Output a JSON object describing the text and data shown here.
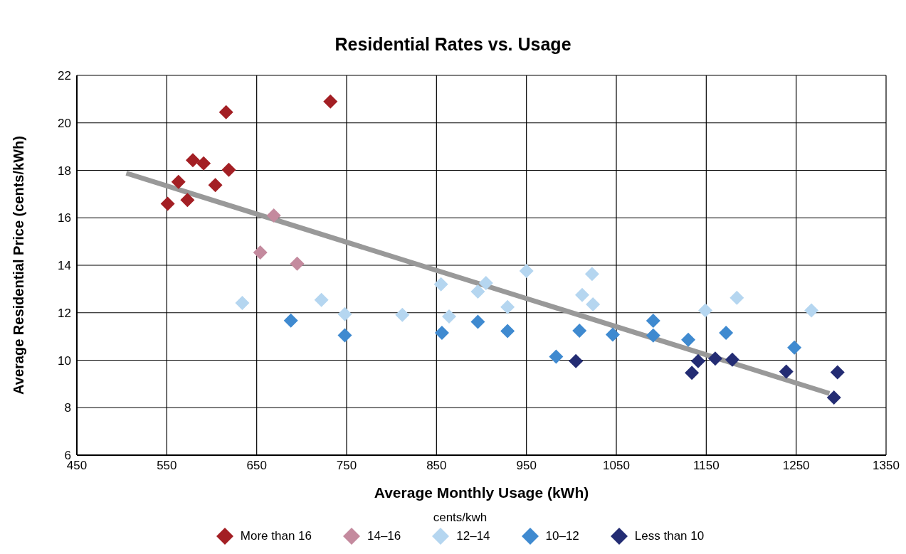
{
  "chart_data": {
    "type": "scatter",
    "title": "Residential Rates vs. Usage",
    "xlabel": "Average Monthly Usage (kWh)",
    "ylabel": "Average Residential Price (cents/kWh)",
    "legend_title": "cents/kwh",
    "legend": "bottom",
    "grid": true,
    "marker": "diamond",
    "xlim": [
      450,
      1350
    ],
    "xticks": [
      450,
      550,
      650,
      750,
      850,
      950,
      1050,
      1150,
      1250,
      1350
    ],
    "ylim": [
      6,
      22
    ],
    "yticks": [
      6,
      8,
      10,
      12,
      14,
      16,
      18,
      20,
      22
    ],
    "series": [
      {
        "name": "More than 16",
        "color": "#a31f24",
        "x": [
          616,
          732,
          579,
          591,
          619,
          563,
          604,
          551,
          573
        ],
        "values": [
          20.45,
          20.9,
          18.43,
          18.29,
          18.02,
          17.51,
          17.38,
          16.59,
          16.75
        ]
      },
      {
        "name": "14–16",
        "color": "#c48a9e",
        "x": [
          669,
          654,
          695
        ],
        "values": [
          16.1,
          14.54,
          14.07
        ]
      },
      {
        "name": "12–14",
        "color": "#b5d6f0",
        "x": [
          634,
          722,
          748,
          812,
          855,
          864,
          896,
          905,
          929,
          950,
          1023,
          1012,
          1024,
          1149,
          1184,
          1267
        ],
        "values": [
          12.41,
          12.54,
          11.94,
          11.91,
          13.2,
          11.84,
          12.89,
          13.25,
          12.24,
          13.76,
          13.63,
          12.75,
          12.35,
          12.1,
          12.63,
          12.1
        ]
      },
      {
        "name": "10–12",
        "color": "#3f8ad0",
        "x": [
          688,
          748,
          856,
          896,
          929,
          983,
          1009,
          1046,
          1091,
          1091,
          1130,
          1172,
          1248
        ],
        "values": [
          11.67,
          11.05,
          11.15,
          11.62,
          11.23,
          10.15,
          11.24,
          11.08,
          11.66,
          11.04,
          10.86,
          11.15,
          10.53
        ]
      },
      {
        "name": "Less than 10",
        "color": "#232c73",
        "x": [
          1005,
          1134,
          1141,
          1160,
          1179,
          1239,
          1296,
          1292
        ],
        "values": [
          9.96,
          9.47,
          9.96,
          10.07,
          10.02,
          9.52,
          9.49,
          8.43
        ]
      },
      {
        "type": "line",
        "marker": "none",
        "color": "#999999",
        "x": [
          505,
          1287
        ],
        "values": [
          17.88,
          8.6
        ]
      }
    ]
  }
}
